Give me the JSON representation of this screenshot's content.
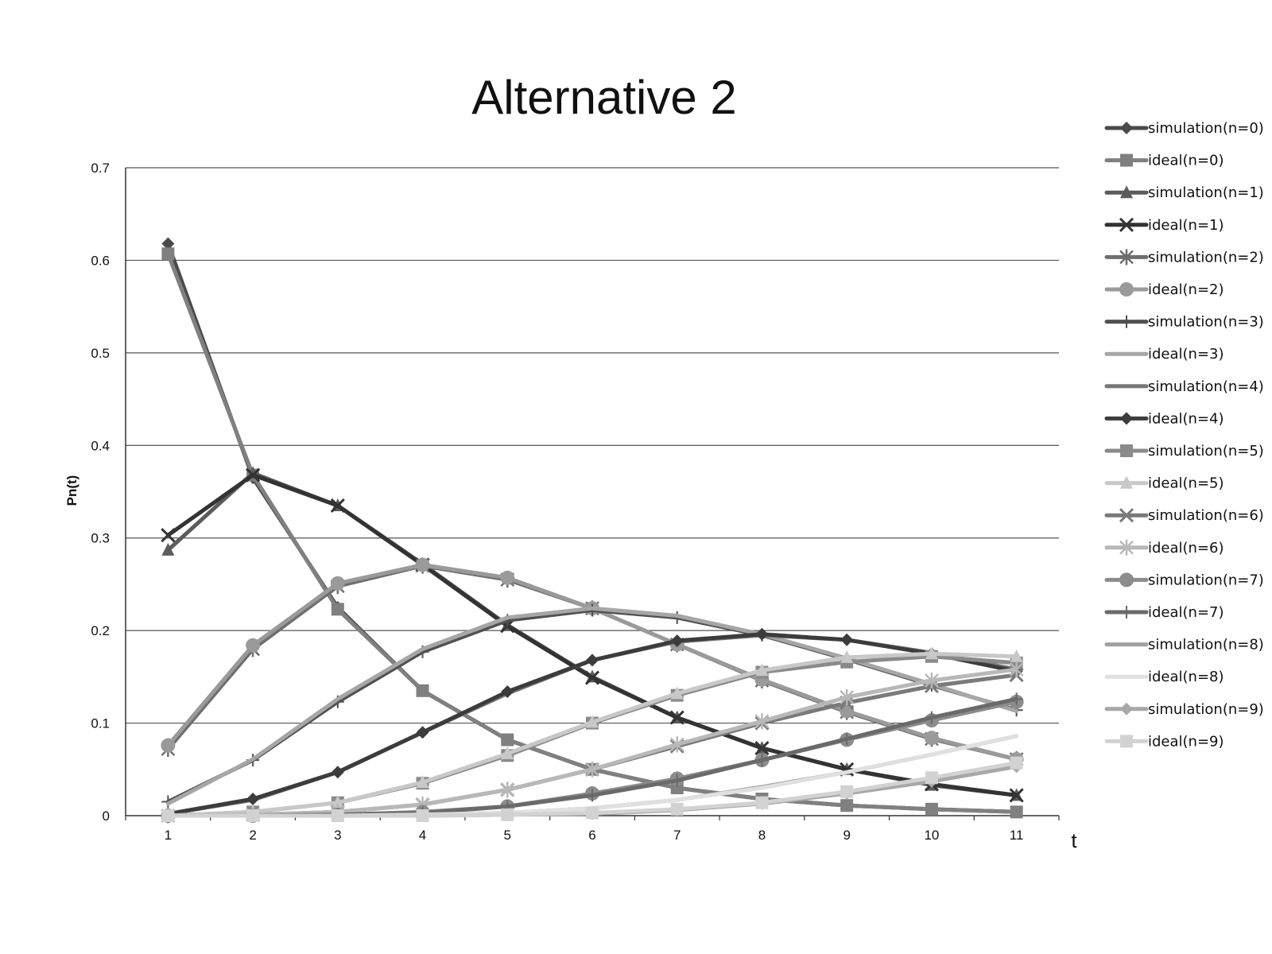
{
  "chart_data": {
    "type": "line",
    "title": "Alternative 2",
    "xlabel": "t",
    "ylabel": "Pn(t)",
    "x": [
      1,
      2,
      3,
      4,
      5,
      6,
      7,
      8,
      9,
      10,
      11
    ],
    "ylim": [
      0,
      0.7
    ],
    "yticks": [
      "0",
      "0.1",
      "0.2",
      "0.3",
      "0.4",
      "0.5",
      "0.6",
      "0.7"
    ],
    "xticks": [
      "1",
      "2",
      "3",
      "4",
      "5",
      "6",
      "7",
      "8",
      "9",
      "10",
      "11"
    ],
    "grid": true,
    "legend_position": "right",
    "series": [
      {
        "name": "simulation(n=0)",
        "color": "#4a4a4a",
        "marker": "diamond",
        "values": [
          0.618,
          0.365,
          0.225,
          0.135,
          0.082,
          0.05,
          0.03,
          0.018,
          0.011,
          0.007,
          0.004
        ]
      },
      {
        "name": "ideal(n=0)",
        "color": "#808080",
        "marker": "square",
        "values": [
          0.607,
          0.368,
          0.223,
          0.135,
          0.082,
          0.05,
          0.03,
          0.018,
          0.011,
          0.007,
          0.004
        ]
      },
      {
        "name": "simulation(n=1)",
        "color": "#5c5c5c",
        "marker": "triangle",
        "values": [
          0.287,
          0.37,
          0.335,
          0.272,
          0.206,
          0.15,
          0.106,
          0.073,
          0.05,
          0.033,
          0.022
        ]
      },
      {
        "name": "ideal(n=1)",
        "color": "#333333",
        "marker": "x",
        "values": [
          0.303,
          0.368,
          0.335,
          0.271,
          0.205,
          0.149,
          0.106,
          0.073,
          0.05,
          0.034,
          0.022
        ]
      },
      {
        "name": "simulation(n=2)",
        "color": "#6e6e6e",
        "marker": "star",
        "values": [
          0.072,
          0.18,
          0.248,
          0.27,
          0.255,
          0.224,
          0.185,
          0.146,
          0.112,
          0.083,
          0.061
        ]
      },
      {
        "name": "ideal(n=2)",
        "color": "#9a9a9a",
        "marker": "circle",
        "values": [
          0.076,
          0.184,
          0.251,
          0.271,
          0.257,
          0.224,
          0.185,
          0.147,
          0.113,
          0.084,
          0.061
        ]
      },
      {
        "name": "simulation(n=3)",
        "color": "#505050",
        "marker": "plus",
        "values": [
          0.015,
          0.06,
          0.123,
          0.177,
          0.211,
          0.222,
          0.214,
          0.195,
          0.169,
          0.141,
          0.114
        ]
      },
      {
        "name": "ideal(n=3)",
        "color": "#a6a6a6",
        "marker": "none",
        "values": [
          0.013,
          0.061,
          0.126,
          0.18,
          0.214,
          0.224,
          0.216,
          0.196,
          0.17,
          0.142,
          0.113
        ]
      },
      {
        "name": "simulation(n=4)",
        "color": "#787878",
        "marker": "none",
        "values": [
          0.002,
          0.017,
          0.047,
          0.09,
          0.132,
          0.168,
          0.188,
          0.195,
          0.19,
          0.176,
          0.158
        ]
      },
      {
        "name": "ideal(n=4)",
        "color": "#3c3c3c",
        "marker": "diamond",
        "values": [
          0.002,
          0.018,
          0.047,
          0.09,
          0.134,
          0.168,
          0.189,
          0.196,
          0.19,
          0.175,
          0.156
        ]
      },
      {
        "name": "simulation(n=5)",
        "color": "#8a8a8a",
        "marker": "square",
        "values": [
          0.0,
          0.004,
          0.014,
          0.035,
          0.065,
          0.1,
          0.13,
          0.155,
          0.166,
          0.172,
          0.165
        ]
      },
      {
        "name": "ideal(n=5)",
        "color": "#c8c8c8",
        "marker": "triangle",
        "values": [
          0.0,
          0.004,
          0.014,
          0.036,
          0.067,
          0.101,
          0.132,
          0.157,
          0.171,
          0.175,
          0.172
        ]
      },
      {
        "name": "simulation(n=6)",
        "color": "#7a7a7a",
        "marker": "x",
        "values": [
          0.0,
          0.001,
          0.004,
          0.012,
          0.028,
          0.05,
          0.075,
          0.1,
          0.122,
          0.14,
          0.152
        ]
      },
      {
        "name": "ideal(n=6)",
        "color": "#b8b8b8",
        "marker": "star",
        "values": [
          0.0,
          0.001,
          0.004,
          0.012,
          0.028,
          0.05,
          0.077,
          0.102,
          0.128,
          0.146,
          0.158
        ]
      },
      {
        "name": "simulation(n=7)",
        "color": "#8c8c8c",
        "marker": "circle",
        "values": [
          0.0,
          0.0,
          0.001,
          0.004,
          0.01,
          0.024,
          0.04,
          0.06,
          0.082,
          0.103,
          0.123
        ]
      },
      {
        "name": "ideal(n=7)",
        "color": "#6a6a6a",
        "marker": "plus",
        "values": [
          0.0,
          0.0,
          0.001,
          0.003,
          0.01,
          0.022,
          0.038,
          0.06,
          0.083,
          0.106,
          0.126
        ]
      },
      {
        "name": "simulation(n=8)",
        "color": "#a0a0a0",
        "marker": "none",
        "values": [
          0.0,
          0.0,
          0.0,
          0.001,
          0.003,
          0.008,
          0.017,
          0.031,
          0.047,
          0.066,
          0.086
        ]
      },
      {
        "name": "ideal(n=8)",
        "color": "#e0e0e0",
        "marker": "none",
        "values": [
          0.0,
          0.0,
          0.0,
          0.001,
          0.003,
          0.008,
          0.017,
          0.03,
          0.047,
          0.066,
          0.086
        ]
      },
      {
        "name": "simulation(n=9)",
        "color": "#a8a8a8",
        "marker": "diamond",
        "values": [
          0.0,
          0.0,
          0.0,
          0.0,
          0.001,
          0.002,
          0.006,
          0.013,
          0.024,
          0.037,
          0.053
        ]
      },
      {
        "name": "ideal(n=9)",
        "color": "#d2d2d2",
        "marker": "square",
        "values": [
          0.0,
          0.0,
          0.0,
          0.0,
          0.001,
          0.003,
          0.007,
          0.014,
          0.026,
          0.041,
          0.057
        ]
      }
    ]
  }
}
